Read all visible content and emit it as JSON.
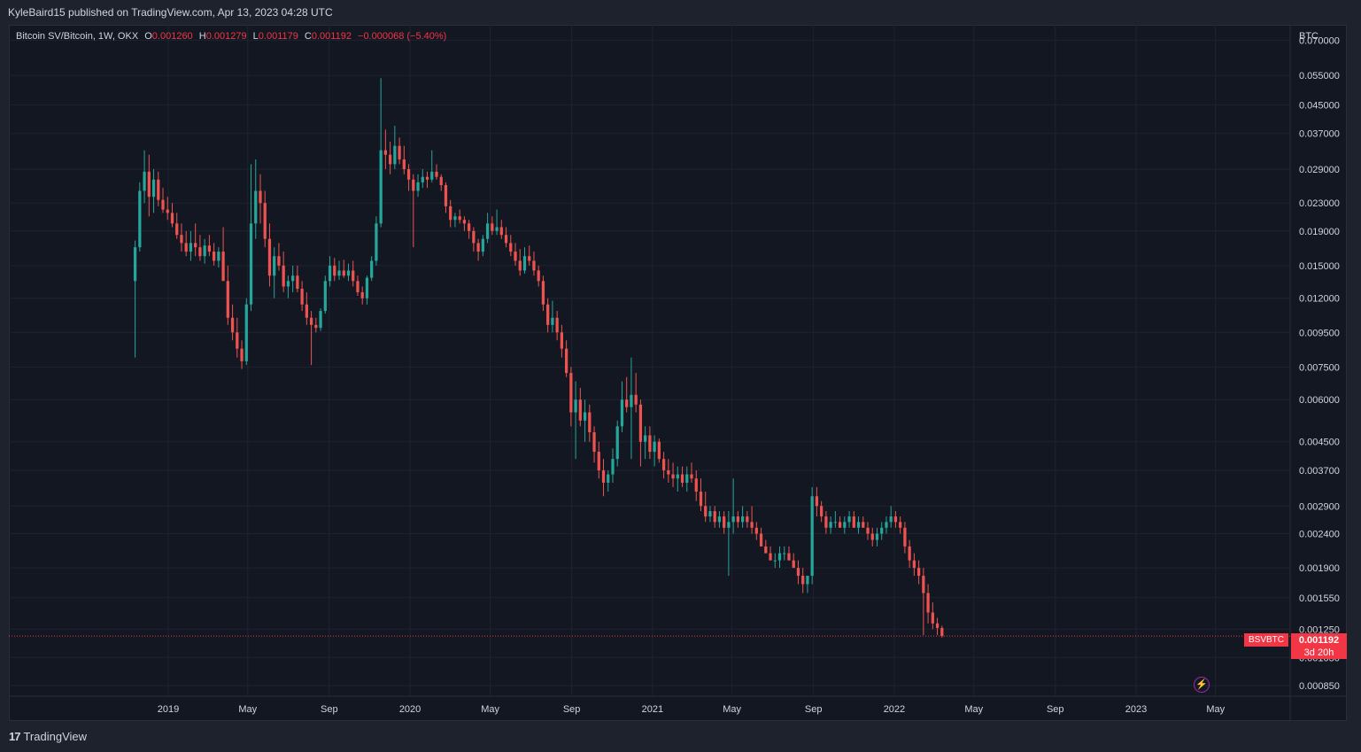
{
  "header": {
    "published_text": "KyleBaird15 published on TradingView.com, Apr 13, 2023 04:28 UTC"
  },
  "legend": {
    "symbol": "Bitcoin SV/Bitcoin, 1W, OKX",
    "o_label": "O",
    "o_value": "0.001260",
    "h_label": "H",
    "h_value": "0.001279",
    "l_label": "L",
    "l_value": "0.001179",
    "c_label": "C",
    "c_value": "0.001192",
    "change": "−0.000068 (−5.40%)"
  },
  "price_tag": {
    "symbol": "BSVBTC",
    "price": "0.001192",
    "countdown": "3d 20h"
  },
  "footer": {
    "brand": "TradingView",
    "logo_mark": "17"
  },
  "colors": {
    "up": "#26a69a",
    "down": "#ef5350",
    "background": "#131722",
    "grid": "#1f2330",
    "text": "#d1d4dc",
    "price_tag": "#f23645"
  },
  "chart_data": {
    "type": "candlestick",
    "title": "Bitcoin SV/Bitcoin, 1W, OKX",
    "y_unit": "BTC",
    "y_scale": "log",
    "ylim": [
      0.0008,
      0.075
    ],
    "y_ticks": [
      "0.070000",
      "0.055000",
      "0.045000",
      "0.037000",
      "0.029000",
      "0.023000",
      "0.019000",
      "0.015000",
      "0.012000",
      "0.009500",
      "0.007500",
      "0.006000",
      "0.004500",
      "0.003700",
      "0.002900",
      "0.002400",
      "0.001900",
      "0.001550",
      "0.001250",
      "0.001030",
      "0.000850"
    ],
    "x_ticks": [
      {
        "label": "2019",
        "date": "2019-01-01"
      },
      {
        "label": "May",
        "date": "2019-05-01"
      },
      {
        "label": "Sep",
        "date": "2019-09-01"
      },
      {
        "label": "2020",
        "date": "2020-01-01"
      },
      {
        "label": "May",
        "date": "2020-05-01"
      },
      {
        "label": "Sep",
        "date": "2020-09-01"
      },
      {
        "label": "2021",
        "date": "2021-01-01"
      },
      {
        "label": "May",
        "date": "2021-05-01"
      },
      {
        "label": "Sep",
        "date": "2021-09-01"
      },
      {
        "label": "2022",
        "date": "2022-01-01"
      },
      {
        "label": "May",
        "date": "2022-05-01"
      },
      {
        "label": "Sep",
        "date": "2022-09-01"
      },
      {
        "label": "2023",
        "date": "2023-01-01"
      },
      {
        "label": "May",
        "date": "2023-05-01"
      }
    ],
    "first_candle_date": "2018-11-12",
    "candle_interval": "1W",
    "last_price": 0.001192,
    "candles": [
      [
        0.0135,
        0.0178,
        0.008,
        0.017
      ],
      [
        0.017,
        0.0265,
        0.0165,
        0.025
      ],
      [
        0.025,
        0.033,
        0.023,
        0.0285
      ],
      [
        0.0285,
        0.032,
        0.021,
        0.024
      ],
      [
        0.024,
        0.029,
        0.0215,
        0.027
      ],
      [
        0.027,
        0.0285,
        0.0225,
        0.0235
      ],
      [
        0.0235,
        0.0255,
        0.0215,
        0.022
      ],
      [
        0.022,
        0.024,
        0.0205,
        0.0215
      ],
      [
        0.0215,
        0.023,
        0.0195,
        0.02
      ],
      [
        0.02,
        0.0215,
        0.018,
        0.0185
      ],
      [
        0.0185,
        0.02,
        0.0165,
        0.0175
      ],
      [
        0.0175,
        0.019,
        0.016,
        0.0165
      ],
      [
        0.0165,
        0.019,
        0.0155,
        0.0175
      ],
      [
        0.0175,
        0.02,
        0.016,
        0.017
      ],
      [
        0.017,
        0.0185,
        0.0155,
        0.016
      ],
      [
        0.016,
        0.018,
        0.0152,
        0.0172
      ],
      [
        0.0172,
        0.0185,
        0.016,
        0.0165
      ],
      [
        0.0165,
        0.0175,
        0.015,
        0.0155
      ],
      [
        0.0155,
        0.017,
        0.0148,
        0.0165
      ],
      [
        0.0165,
        0.0195,
        0.014,
        0.0135
      ],
      [
        0.0135,
        0.015,
        0.01,
        0.0105
      ],
      [
        0.0105,
        0.0115,
        0.009,
        0.0095
      ],
      [
        0.0095,
        0.0105,
        0.008,
        0.0085
      ],
      [
        0.0085,
        0.009,
        0.0074,
        0.0078
      ],
      [
        0.0078,
        0.012,
        0.0076,
        0.0115
      ],
      [
        0.0115,
        0.03,
        0.011,
        0.02
      ],
      [
        0.02,
        0.031,
        0.018,
        0.025
      ],
      [
        0.025,
        0.028,
        0.02,
        0.023
      ],
      [
        0.023,
        0.025,
        0.017,
        0.018
      ],
      [
        0.018,
        0.02,
        0.013,
        0.014
      ],
      [
        0.014,
        0.017,
        0.012,
        0.016
      ],
      [
        0.016,
        0.0175,
        0.0145,
        0.015
      ],
      [
        0.015,
        0.0165,
        0.0125,
        0.013
      ],
      [
        0.013,
        0.014,
        0.012,
        0.0135
      ],
      [
        0.0135,
        0.015,
        0.0125,
        0.014
      ],
      [
        0.014,
        0.015,
        0.0125,
        0.0128
      ],
      [
        0.0128,
        0.0135,
        0.011,
        0.0115
      ],
      [
        0.0115,
        0.0125,
        0.01,
        0.0105
      ],
      [
        0.0105,
        0.011,
        0.0076,
        0.01
      ],
      [
        0.01,
        0.0105,
        0.0095,
        0.0098
      ],
      [
        0.0098,
        0.0112,
        0.0096,
        0.011
      ],
      [
        0.011,
        0.014,
        0.0108,
        0.0135
      ],
      [
        0.0135,
        0.016,
        0.013,
        0.015
      ],
      [
        0.015,
        0.0158,
        0.0135,
        0.014
      ],
      [
        0.014,
        0.0155,
        0.0136,
        0.0145
      ],
      [
        0.0145,
        0.0156,
        0.0138,
        0.014
      ],
      [
        0.014,
        0.0152,
        0.0135,
        0.0145
      ],
      [
        0.0145,
        0.0155,
        0.013,
        0.0135
      ],
      [
        0.0135,
        0.014,
        0.0122,
        0.0125
      ],
      [
        0.0125,
        0.013,
        0.0115,
        0.012
      ],
      [
        0.012,
        0.014,
        0.0115,
        0.0138
      ],
      [
        0.0138,
        0.016,
        0.0135,
        0.0155
      ],
      [
        0.0155,
        0.021,
        0.015,
        0.02
      ],
      [
        0.02,
        0.054,
        0.0195,
        0.033
      ],
      [
        0.033,
        0.038,
        0.029,
        0.032
      ],
      [
        0.032,
        0.035,
        0.028,
        0.03
      ],
      [
        0.03,
        0.039,
        0.029,
        0.034
      ],
      [
        0.034,
        0.036,
        0.03,
        0.031
      ],
      [
        0.031,
        0.034,
        0.028,
        0.029
      ],
      [
        0.029,
        0.03,
        0.025,
        0.027
      ],
      [
        0.027,
        0.028,
        0.017,
        0.025
      ],
      [
        0.025,
        0.028,
        0.024,
        0.0265
      ],
      [
        0.0265,
        0.029,
        0.0255,
        0.0275
      ],
      [
        0.0275,
        0.0285,
        0.0255,
        0.027
      ],
      [
        0.027,
        0.033,
        0.0265,
        0.0285
      ],
      [
        0.0285,
        0.03,
        0.027,
        0.0275
      ],
      [
        0.0275,
        0.028,
        0.025,
        0.026
      ],
      [
        0.026,
        0.0265,
        0.0215,
        0.0225
      ],
      [
        0.0225,
        0.0235,
        0.0195,
        0.0205
      ],
      [
        0.0205,
        0.0215,
        0.0195,
        0.021
      ],
      [
        0.021,
        0.022,
        0.02,
        0.0205
      ],
      [
        0.0205,
        0.021,
        0.019,
        0.02
      ],
      [
        0.02,
        0.0205,
        0.018,
        0.019
      ],
      [
        0.019,
        0.0195,
        0.0165,
        0.0175
      ],
      [
        0.0175,
        0.018,
        0.0155,
        0.0165
      ],
      [
        0.0165,
        0.0185,
        0.016,
        0.018
      ],
      [
        0.018,
        0.0215,
        0.0175,
        0.02
      ],
      [
        0.02,
        0.021,
        0.0185,
        0.019
      ],
      [
        0.019,
        0.022,
        0.0185,
        0.0195
      ],
      [
        0.0195,
        0.0205,
        0.018,
        0.0185
      ],
      [
        0.0185,
        0.0195,
        0.017,
        0.0175
      ],
      [
        0.0175,
        0.0185,
        0.016,
        0.0165
      ],
      [
        0.0165,
        0.0175,
        0.015,
        0.0155
      ],
      [
        0.0155,
        0.0168,
        0.014,
        0.0145
      ],
      [
        0.0145,
        0.017,
        0.0142,
        0.016
      ],
      [
        0.016,
        0.0172,
        0.015,
        0.0155
      ],
      [
        0.0155,
        0.0165,
        0.014,
        0.0145
      ],
      [
        0.0145,
        0.015,
        0.013,
        0.0135
      ],
      [
        0.0135,
        0.014,
        0.011,
        0.0115
      ],
      [
        0.0115,
        0.012,
        0.0095,
        0.01
      ],
      [
        0.01,
        0.0118,
        0.0095,
        0.0105
      ],
      [
        0.0105,
        0.011,
        0.009,
        0.0095
      ],
      [
        0.0095,
        0.01,
        0.008,
        0.0085
      ],
      [
        0.0085,
        0.009,
        0.007,
        0.0072
      ],
      [
        0.0072,
        0.0075,
        0.005,
        0.0055
      ],
      [
        0.0055,
        0.0068,
        0.004,
        0.006
      ],
      [
        0.006,
        0.0065,
        0.005,
        0.0052
      ],
      [
        0.0052,
        0.006,
        0.0045,
        0.0055
      ],
      [
        0.0055,
        0.0058,
        0.0045,
        0.0048
      ],
      [
        0.0048,
        0.005,
        0.0039,
        0.0042
      ],
      [
        0.0042,
        0.0045,
        0.0035,
        0.0037
      ],
      [
        0.0037,
        0.004,
        0.0031,
        0.0034
      ],
      [
        0.0034,
        0.0037,
        0.0032,
        0.0036
      ],
      [
        0.0036,
        0.0043,
        0.0034,
        0.004
      ],
      [
        0.004,
        0.0052,
        0.0038,
        0.005
      ],
      [
        0.005,
        0.0068,
        0.0048,
        0.006
      ],
      [
        0.006,
        0.007,
        0.0055,
        0.0057
      ],
      [
        0.0057,
        0.008,
        0.004,
        0.0062
      ],
      [
        0.0062,
        0.0072,
        0.0055,
        0.0058
      ],
      [
        0.0058,
        0.006,
        0.0038,
        0.0045
      ],
      [
        0.0045,
        0.005,
        0.004,
        0.0047
      ],
      [
        0.0047,
        0.005,
        0.004,
        0.0042
      ],
      [
        0.0042,
        0.0047,
        0.0038,
        0.0045
      ],
      [
        0.0045,
        0.0046,
        0.0039,
        0.004
      ],
      [
        0.004,
        0.0042,
        0.0035,
        0.0037
      ],
      [
        0.0037,
        0.004,
        0.0034,
        0.0036
      ],
      [
        0.0036,
        0.0039,
        0.0033,
        0.0035
      ],
      [
        0.0035,
        0.0038,
        0.0032,
        0.0036
      ],
      [
        0.0036,
        0.0038,
        0.0033,
        0.0034
      ],
      [
        0.0034,
        0.0038,
        0.0032,
        0.0036
      ],
      [
        0.0036,
        0.0039,
        0.0034,
        0.0035
      ],
      [
        0.0035,
        0.0037,
        0.003,
        0.0032
      ],
      [
        0.0032,
        0.0035,
        0.0028,
        0.0029
      ],
      [
        0.0029,
        0.0032,
        0.0026,
        0.0027
      ],
      [
        0.0027,
        0.0029,
        0.0026,
        0.0028
      ],
      [
        0.0028,
        0.0029,
        0.0025,
        0.0026
      ],
      [
        0.0026,
        0.0028,
        0.0025,
        0.0027
      ],
      [
        0.0027,
        0.0028,
        0.0024,
        0.0025
      ],
      [
        0.0025,
        0.0028,
        0.0018,
        0.0026
      ],
      [
        0.0026,
        0.0035,
        0.0024,
        0.0027
      ],
      [
        0.0027,
        0.0028,
        0.0025,
        0.0026
      ],
      [
        0.0026,
        0.0029,
        0.0025,
        0.0027
      ],
      [
        0.0027,
        0.0028,
        0.0025,
        0.0026
      ],
      [
        0.0026,
        0.0029,
        0.0024,
        0.0025
      ],
      [
        0.0025,
        0.0026,
        0.0023,
        0.0024
      ],
      [
        0.0024,
        0.0025,
        0.0022,
        0.0022
      ],
      [
        0.0022,
        0.0023,
        0.0021,
        0.0021
      ],
      [
        0.0021,
        0.0022,
        0.002,
        0.002
      ],
      [
        0.002,
        0.0021,
        0.0019,
        0.002
      ],
      [
        0.002,
        0.0022,
        0.0019,
        0.0021
      ],
      [
        0.0021,
        0.0022,
        0.002,
        0.0021
      ],
      [
        0.0021,
        0.0022,
        0.002,
        0.002
      ],
      [
        0.002,
        0.0021,
        0.0019,
        0.0019
      ],
      [
        0.0019,
        0.002,
        0.0017,
        0.0018
      ],
      [
        0.0018,
        0.0019,
        0.0016,
        0.0017
      ],
      [
        0.0017,
        0.0018,
        0.0016,
        0.0018
      ],
      [
        0.0018,
        0.0033,
        0.0017,
        0.0031
      ],
      [
        0.0031,
        0.0033,
        0.0027,
        0.0029
      ],
      [
        0.0029,
        0.003,
        0.0026,
        0.0027
      ],
      [
        0.0027,
        0.0028,
        0.0024,
        0.0025
      ],
      [
        0.0025,
        0.0027,
        0.0024,
        0.0026
      ],
      [
        0.0026,
        0.0028,
        0.0025,
        0.0026
      ],
      [
        0.0026,
        0.0027,
        0.0025,
        0.0025
      ],
      [
        0.0025,
        0.0027,
        0.0024,
        0.0026
      ],
      [
        0.0026,
        0.0028,
        0.0025,
        0.0027
      ],
      [
        0.0027,
        0.0028,
        0.0025,
        0.0025
      ],
      [
        0.0025,
        0.0027,
        0.0024,
        0.0026
      ],
      [
        0.0026,
        0.0027,
        0.0025,
        0.0025
      ],
      [
        0.0025,
        0.0026,
        0.0023,
        0.0024
      ],
      [
        0.0024,
        0.0025,
        0.0022,
        0.0023
      ],
      [
        0.0023,
        0.0025,
        0.0022,
        0.0024
      ],
      [
        0.0024,
        0.0026,
        0.0023,
        0.0025
      ],
      [
        0.0025,
        0.0027,
        0.0024,
        0.0026
      ],
      [
        0.0026,
        0.0029,
        0.0025,
        0.0027
      ],
      [
        0.0027,
        0.0028,
        0.0025,
        0.0026
      ],
      [
        0.0026,
        0.0027,
        0.0024,
        0.0025
      ],
      [
        0.0025,
        0.0026,
        0.0021,
        0.0022
      ],
      [
        0.0022,
        0.0023,
        0.0019,
        0.002
      ],
      [
        0.002,
        0.0021,
        0.0018,
        0.0019
      ],
      [
        0.0019,
        0.002,
        0.0017,
        0.0018
      ],
      [
        0.0018,
        0.0019,
        0.0012,
        0.0016
      ],
      [
        0.0016,
        0.0017,
        0.0013,
        0.0014
      ],
      [
        0.0014,
        0.0015,
        0.00125,
        0.0013
      ],
      [
        0.0013,
        0.00135,
        0.0012,
        0.00126
      ],
      [
        0.00126,
        0.00128,
        0.00118,
        0.001192
      ]
    ]
  }
}
